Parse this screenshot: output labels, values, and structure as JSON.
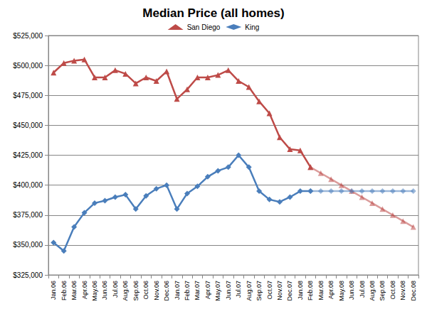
{
  "chart_data": {
    "type": "line",
    "title": "Median Price (all homes)",
    "categories": [
      "Jan.06",
      "Feb.06",
      "Mar.06",
      "Apr.06",
      "May.06",
      "Jun.06",
      "Jul.06",
      "Aug.06",
      "Sep.06",
      "Oct.06",
      "Nov.06",
      "Dec.06",
      "Jan.07",
      "Feb.07",
      "Mar.07",
      "Apr.07",
      "May.07",
      "Jun.07",
      "Jul.07",
      "Aug.07",
      "Sep.07",
      "Oct.07",
      "Nov.07",
      "Dec.07",
      "Jan.08",
      "Feb.08",
      "Mar.08",
      "Apr.08",
      "May.08",
      "Jun.08",
      "Jul.08",
      "Aug.08",
      "Sep.08",
      "Oct.08",
      "Nov.08",
      "Dec.08"
    ],
    "series": [
      {
        "name": "San Diego",
        "color": "#be4b48",
        "marker": "triangle",
        "values": [
          494000,
          502000,
          504000,
          505000,
          490000,
          490000,
          496000,
          493000,
          485000,
          490000,
          487000,
          495000,
          472000,
          480000,
          490000,
          490000,
          492000,
          496000,
          487000,
          482000,
          470000,
          460000,
          440000,
          430000,
          429000,
          415000,
          null,
          null,
          null,
          null,
          null,
          null,
          null,
          null,
          null,
          null
        ],
        "forecast": [
          null,
          null,
          null,
          null,
          null,
          null,
          null,
          null,
          null,
          null,
          null,
          null,
          null,
          null,
          null,
          null,
          null,
          null,
          null,
          null,
          null,
          null,
          null,
          null,
          null,
          null,
          410000,
          405000,
          400000,
          395000,
          390000,
          385000,
          380000,
          375000,
          370000,
          365000
        ]
      },
      {
        "name": "King",
        "color": "#4a7ebb",
        "marker": "diamond",
        "values": [
          352000,
          345000,
          365000,
          377000,
          385000,
          387000,
          390000,
          392000,
          380000,
          391000,
          397000,
          400000,
          380000,
          393000,
          399000,
          407000,
          412000,
          415000,
          425000,
          415000,
          395000,
          388000,
          386000,
          390000,
          395000,
          395000,
          null,
          null,
          null,
          null,
          null,
          null,
          null,
          null,
          null,
          null
        ],
        "forecast": [
          null,
          null,
          null,
          null,
          null,
          null,
          null,
          null,
          null,
          null,
          null,
          null,
          null,
          null,
          null,
          null,
          null,
          null,
          null,
          null,
          null,
          null,
          null,
          null,
          null,
          null,
          395000,
          395000,
          395000,
          395000,
          395000,
          395000,
          395000,
          395000,
          395000,
          395000
        ]
      }
    ],
    "ylim": [
      325000,
      525000
    ],
    "yticks": [
      {
        "value": 325000,
        "label": "$325,000"
      },
      {
        "value": 350000,
        "label": "$350,000"
      },
      {
        "value": 375000,
        "label": "$375,000"
      },
      {
        "value": 400000,
        "label": "$400,000"
      },
      {
        "value": 425000,
        "label": "$425,000"
      },
      {
        "value": 450000,
        "label": "$450,000"
      },
      {
        "value": 475000,
        "label": "$475,000"
      },
      {
        "value": 500000,
        "label": "$500,000"
      },
      {
        "value": 525000,
        "label": "$525,000"
      }
    ],
    "grid": true,
    "legend": "top"
  }
}
